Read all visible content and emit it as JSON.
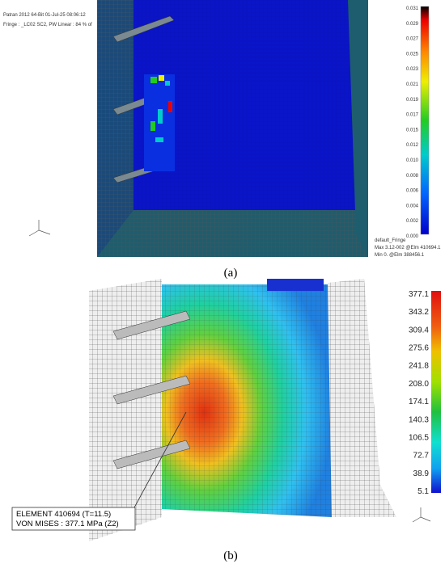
{
  "panel_a": {
    "header": [
      "Patran 2012 64-Bit 01-Jul-25 08:06:12",
      "Fringe : _LC02 SC2, PW Linear : 84 % of"
    ],
    "legend": [
      "0.031",
      "0.029",
      "0.027",
      "0.025",
      "0.023",
      "0.021",
      "0.019",
      "0.017",
      "0.015",
      "0.012",
      "0.010",
      "0.008",
      "0.006",
      "0.004",
      "0.002",
      "0.000"
    ],
    "footer": [
      "default_Fringe",
      "Max 3.12-002 @Elm 410694.1",
      "Min 0. @Elm 388456.1"
    ],
    "caption": "(a)"
  },
  "panel_b": {
    "legend": [
      "377.1",
      "343.2",
      "309.4",
      "275.6",
      "241.8",
      "208.0",
      "174.1",
      "140.3",
      "106.5",
      "72.7",
      "38.9",
      "5.1"
    ],
    "annotation": [
      "ELEMENT 410694 (T=11.5)",
      "VON MISES : 377.1 MPa (Z2)"
    ],
    "caption": "(b)"
  }
}
